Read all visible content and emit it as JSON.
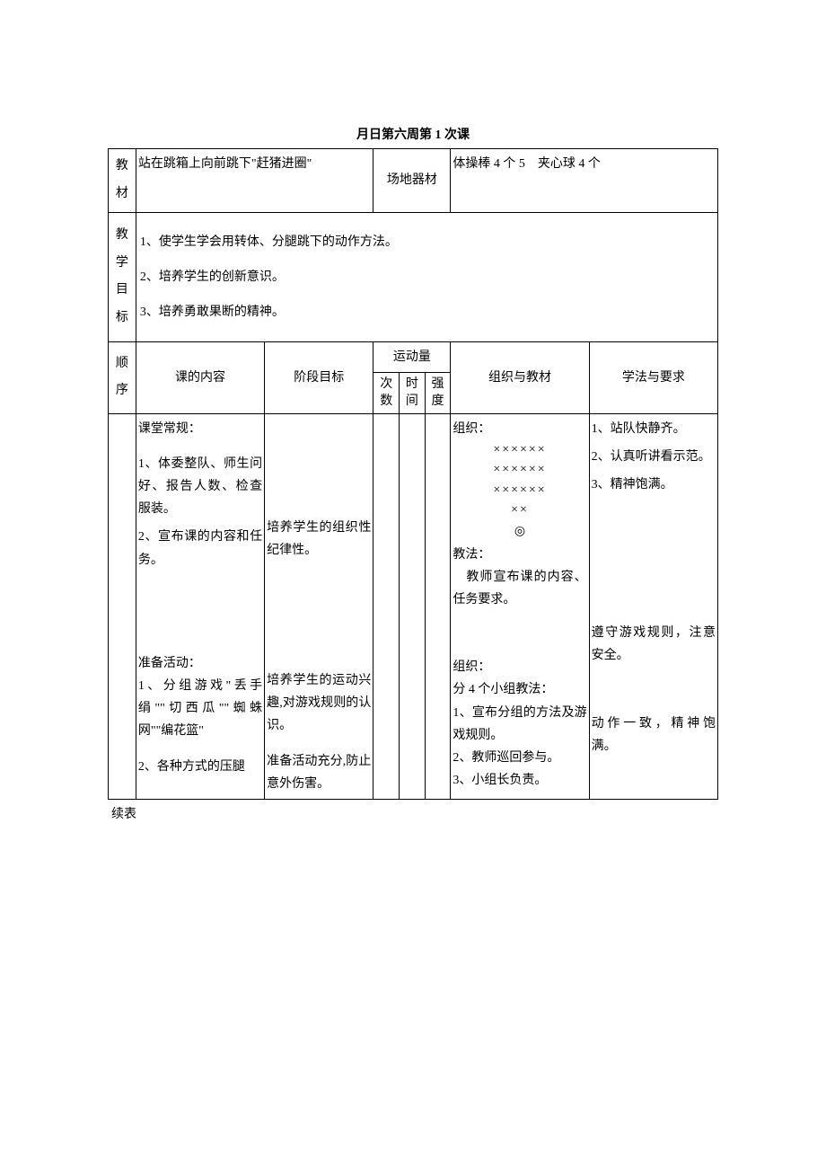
{
  "title": "月日第六周第 1 次课",
  "row1": {
    "label": "教材",
    "content": "站在跳箱上向前跳下\"赶猪进圈\"",
    "fieldLabel": "场地器材",
    "equipment": "体操棒 4 个 5 夹心球 4 个"
  },
  "row2": {
    "label": "教学目标",
    "line1": "1、使学生学会用转体、分腿跳下的动作方法。",
    "line2": "2、培养学生的创新意识。",
    "line3": "3、培养勇敢果断的精神。"
  },
  "header": {
    "seq": "顺序",
    "content": "课的内容",
    "phase": "阶段目标",
    "load": "运动量",
    "times": "次数",
    "time": "时间",
    "intensity": "强度",
    "org": "组织与教材",
    "method": "学法与要求"
  },
  "body": {
    "content1_title": "课堂常规：",
    "content1_1": "1、体委整队、师生问好、报告人数、检查服装。",
    "content1_2": "2、宣布课的内容和任务。",
    "content2_title": "准备活动：",
    "content2_1": "1、分组游戏\"丢手绢\"\"切西瓜\"\"蜘蛛网\"\"编花篮\"",
    "content2_2": "2、各种方式的压腿",
    "phase1": "培养学生的组织性纪律性。",
    "phase2": "培养学生的运动兴趣,对游戏规则的认识。",
    "phase3": "准备活动充分,防止意外伤害。",
    "org1_title": "组织：",
    "org1_rows": "×××××× ×××××× ×××××× ××",
    "org1_symbol": "◎",
    "org1_teach_title": "教法：",
    "org1_teach": " 教师宣布课的内容、任务要求。",
    "org2_title": "组织：",
    "org2_group": "分 4 个小组教法：",
    "org2_1": "1、宣布分组的方法及游戏规则。",
    "org2_2": "2、教师巡回参与。",
    "org2_3": "3、小组长负责。",
    "method1_1": "1、站队快静齐。",
    "method1_2": "2、认真听讲看示范。",
    "method1_3": "3、精神饱满。",
    "method2_1": "遵守游戏规则，注意安全。",
    "method2_2": "动作一致，精神饱满。"
  },
  "continued": "续表"
}
